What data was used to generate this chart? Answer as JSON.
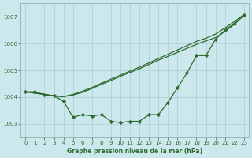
{
  "bg_color": "#cde8ec",
  "grid_color": "#aacdd4",
  "line_color": "#2d6a2d",
  "marker_color": "#2d6a2d",
  "text_color": "#2d6a2d",
  "xlabel": "Graphe pression niveau de la mer (hPa)",
  "ylim": [
    1002.5,
    1007.5
  ],
  "xlim": [
    -0.5,
    23.5
  ],
  "yticks": [
    1003,
    1004,
    1005,
    1006,
    1007
  ],
  "xticks": [
    0,
    1,
    2,
    3,
    4,
    5,
    6,
    7,
    8,
    9,
    10,
    11,
    12,
    13,
    14,
    15,
    16,
    17,
    18,
    19,
    20,
    21,
    22,
    23
  ],
  "series_jagged": [
    1004.2,
    1004.2,
    1004.1,
    1004.05,
    1003.85,
    1003.25,
    1003.35,
    1003.3,
    1003.35,
    1003.1,
    1003.05,
    1003.1,
    1003.1,
    1003.35,
    1003.35,
    1003.8,
    1004.35,
    1004.9,
    1005.55,
    1005.55,
    1006.15,
    1006.5,
    1006.75,
    1007.05
  ],
  "series_smooth1": [
    1004.2,
    1004.15,
    1004.1,
    1004.05,
    1004.02,
    1004.08,
    1004.18,
    1004.32,
    1004.48,
    1004.62,
    1004.78,
    1004.92,
    1005.06,
    1005.22,
    1005.38,
    1005.52,
    1005.67,
    1005.82,
    1005.97,
    1006.1,
    1006.22,
    1006.45,
    1006.72,
    1007.05
  ],
  "series_smooth2": [
    1004.2,
    1004.15,
    1004.1,
    1004.05,
    1004.02,
    1004.1,
    1004.22,
    1004.36,
    1004.52,
    1004.67,
    1004.82,
    1004.97,
    1005.12,
    1005.28,
    1005.44,
    1005.6,
    1005.76,
    1005.92,
    1006.08,
    1006.2,
    1006.35,
    1006.58,
    1006.82,
    1007.08
  ]
}
